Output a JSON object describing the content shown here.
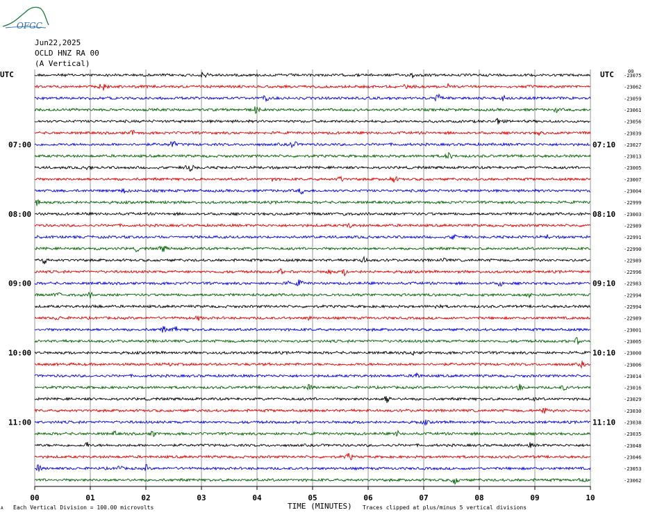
{
  "logo": {
    "text": "OFGC",
    "color": "#2a6ab0"
  },
  "header": {
    "date": "Jun22,2025",
    "station": "OCLD HNZ RA 00",
    "component": "(A Vertical)"
  },
  "utc_label_left": "UTC",
  "utc_label_right": "UTC",
  "corner_mark_top_right": "00",
  "footer": {
    "scale_note": "Each Vertical Division =  100.00 microvolts",
    "axis_title": "TIME (MINUTES)",
    "clip_note": "Traces clipped at plus/minus 5 vertical divisions",
    "corner_mark": "A"
  },
  "colors": {
    "grid": "#808080",
    "trace_cycle": [
      "#000000",
      "#e00000",
      "#0000e0",
      "#006000"
    ]
  },
  "chart_data": {
    "type": "line",
    "title": "",
    "xlabel": "TIME (MINUTES)",
    "ylabel": "",
    "x_ticks": [
      "00",
      "01",
      "02",
      "03",
      "04",
      "05",
      "06",
      "07",
      "08",
      "09",
      "10"
    ],
    "xlim": [
      0,
      10
    ],
    "left_hour_labels": [
      {
        "row": 6,
        "label": "07:00"
      },
      {
        "row": 12,
        "label": "08:00"
      },
      {
        "row": 18,
        "label": "09:00"
      },
      {
        "row": 24,
        "label": "10:00"
      },
      {
        "row": 30,
        "label": "11:00"
      }
    ],
    "right_hour_labels": [
      {
        "row": 6,
        "label": "07:10"
      },
      {
        "row": 12,
        "label": "08:10"
      },
      {
        "row": 18,
        "label": "09:10"
      },
      {
        "row": 24,
        "label": "10:10"
      },
      {
        "row": 30,
        "label": "11:10"
      }
    ],
    "series": [
      {
        "offset": "-23075"
      },
      {
        "offset": "-23062"
      },
      {
        "offset": "-23059"
      },
      {
        "offset": "-23061"
      },
      {
        "offset": "-23056"
      },
      {
        "offset": "-23039"
      },
      {
        "offset": "-23027"
      },
      {
        "offset": "-23013"
      },
      {
        "offset": "-23005"
      },
      {
        "offset": "-23007"
      },
      {
        "offset": "-23004"
      },
      {
        "offset": "-22999"
      },
      {
        "offset": "-23003"
      },
      {
        "offset": "-22989"
      },
      {
        "offset": "-22991"
      },
      {
        "offset": "-22990"
      },
      {
        "offset": "-22989"
      },
      {
        "offset": "-22996"
      },
      {
        "offset": "-22983"
      },
      {
        "offset": "-22994"
      },
      {
        "offset": "-22994"
      },
      {
        "offset": "-22989"
      },
      {
        "offset": "-23001"
      },
      {
        "offset": "-23005"
      },
      {
        "offset": "-23000"
      },
      {
        "offset": "-23006"
      },
      {
        "offset": "-23014"
      },
      {
        "offset": "-23016"
      },
      {
        "offset": "-23029"
      },
      {
        "offset": "-23030"
      },
      {
        "offset": "-23038"
      },
      {
        "offset": "-23035"
      },
      {
        "offset": "-23048"
      },
      {
        "offset": "-23046"
      },
      {
        "offset": "-23053"
      },
      {
        "offset": "-23062"
      }
    ]
  }
}
